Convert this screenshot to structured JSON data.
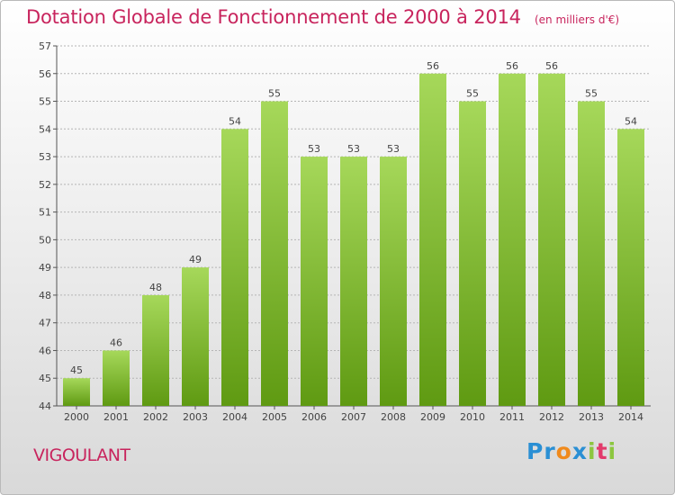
{
  "title": "Dotation Globale de Fonctionnement de 2000 à 2014",
  "subtitle": "(en milliers d'€)",
  "commune": "VIGOULANT",
  "logo": {
    "letters": [
      "P",
      "r",
      "o",
      "x",
      "i",
      "t",
      "i"
    ],
    "colors": [
      "#2a8fd4",
      "#2a8fd4",
      "#f08a1c",
      "#2a8fd4",
      "#8cc63f",
      "#e23b6b",
      "#8cc63f"
    ]
  },
  "colors": {
    "bar_light": "#a6d85a",
    "bar_dark": "#5f9a12",
    "accent": "#c8245d",
    "grid": "#b5b5b5"
  },
  "chart_data": {
    "type": "bar",
    "categories": [
      "2000",
      "2001",
      "2002",
      "2003",
      "2004",
      "2005",
      "2006",
      "2007",
      "2008",
      "2009",
      "2010",
      "2011",
      "2012",
      "2013",
      "2014"
    ],
    "values": [
      45,
      46,
      48,
      49,
      54,
      55,
      53,
      53,
      53,
      56,
      55,
      56,
      56,
      55,
      54
    ],
    "yticks": [
      44,
      45,
      46,
      47,
      48,
      49,
      50,
      51,
      52,
      53,
      54,
      55,
      56,
      57
    ],
    "ylim": [
      44,
      57
    ],
    "grid": true,
    "title": "Dotation Globale de Fonctionnement de 2000 à 2014",
    "xlabel": "",
    "ylabel": ""
  }
}
